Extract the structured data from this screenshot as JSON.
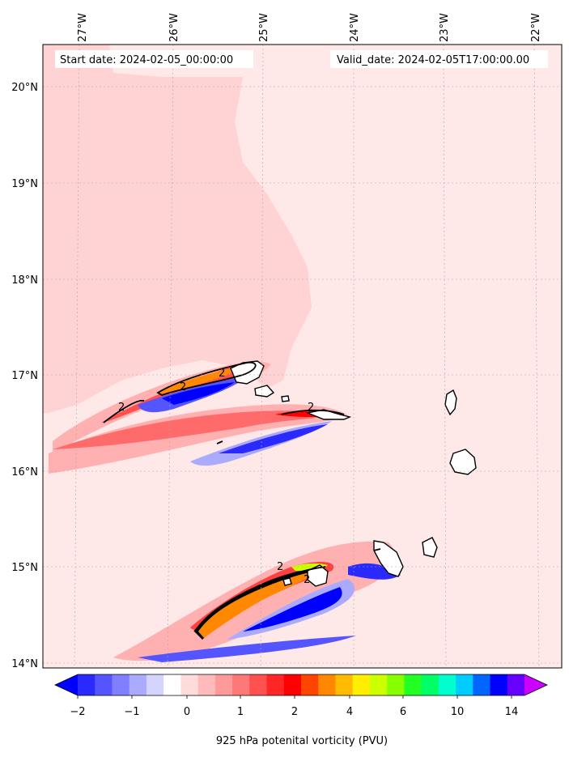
{
  "header": {
    "start_date": "Start date: 2024-02-05_00:00:00",
    "valid_date": "Valid_date: 2024-02-05T17:00:00.00"
  },
  "map": {
    "lon_labels": [
      "27°W",
      "26°W",
      "25°W",
      "24°W",
      "23°W",
      "22°W"
    ],
    "lat_labels": [
      "20°N",
      "19°N",
      "18°N",
      "17°N",
      "16°N",
      "15°N",
      "14°N"
    ],
    "background_color": "#ffe8e8",
    "cyclonic_region_color": "#ffd3d3",
    "contour_label": "2",
    "contour_label_count": 6
  },
  "colorbar": {
    "tick_labels": [
      "−2",
      "−1",
      "0",
      "1",
      "2",
      "4",
      "6",
      "10",
      "14"
    ],
    "label": "925 hPa potenital vorticity (PVU)",
    "colors": [
      "#0000ff",
      "#2a2aff",
      "#5555ff",
      "#7f7fff",
      "#aaaaff",
      "#d4d4ff",
      "#ffffff",
      "#ffdcdc",
      "#ffbbbb",
      "#ff9a9a",
      "#ff7878",
      "#ff5050",
      "#ff2626",
      "#ff0000",
      "#ff4400",
      "#ff8800",
      "#ffbb00",
      "#ffee00",
      "#ccff00",
      "#88ff00",
      "#22ff22",
      "#00ff66",
      "#00ffcc",
      "#00ccff",
      "#0066ff",
      "#0000ff",
      "#6600ff",
      "#cc00ff"
    ]
  }
}
